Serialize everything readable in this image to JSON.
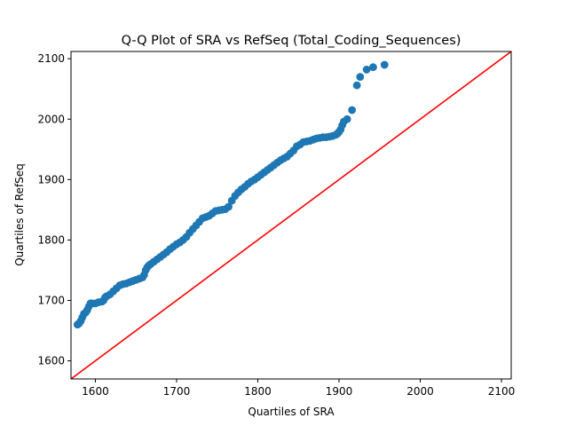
{
  "chart_data": {
    "type": "scatter",
    "title": "Q-Q Plot of SRA vs RefSeq (Total_Coding_Sequences)",
    "xlabel": "Quartiles of SRA",
    "ylabel": "Quartiles of RefSeq",
    "xlim": [
      1570,
      2112
    ],
    "ylim": [
      1570,
      2112
    ],
    "xticks": [
      1600,
      1700,
      1800,
      1900,
      2000,
      2100
    ],
    "yticks": [
      1600,
      1700,
      1800,
      1900,
      2000,
      2100
    ],
    "grid": false,
    "marker_color": "#1f77b4",
    "reference_line": {
      "from": [
        1570,
        1570
      ],
      "to": [
        2112,
        2112
      ],
      "color": "#ff0000"
    },
    "points": {
      "x": [
        1578,
        1580,
        1582,
        1584,
        1586,
        1588,
        1590,
        1592,
        1594,
        1596,
        1600,
        1604,
        1608,
        1610,
        1612,
        1614,
        1618,
        1622,
        1626,
        1630,
        1634,
        1638,
        1642,
        1646,
        1650,
        1654,
        1658,
        1660,
        1662,
        1664,
        1666,
        1668,
        1672,
        1676,
        1680,
        1684,
        1688,
        1692,
        1696,
        1700,
        1704,
        1708,
        1712,
        1716,
        1720,
        1724,
        1728,
        1732,
        1736,
        1740,
        1744,
        1748,
        1752,
        1756,
        1760,
        1764,
        1768,
        1772,
        1776,
        1780,
        1784,
        1788,
        1792,
        1796,
        1800,
        1804,
        1808,
        1812,
        1816,
        1820,
        1824,
        1828,
        1832,
        1836,
        1840,
        1844,
        1848,
        1852,
        1856,
        1860,
        1864,
        1868,
        1872,
        1876,
        1880,
        1884,
        1888,
        1892,
        1896,
        1898,
        1900,
        1902,
        1904,
        1906,
        1910,
        1916,
        1922,
        1926,
        1934,
        1942,
        1956
      ],
      "y": [
        1660,
        1662,
        1666,
        1672,
        1678,
        1680,
        1684,
        1690,
        1695,
        1695,
        1695,
        1697,
        1698,
        1700,
        1705,
        1707,
        1710,
        1715,
        1720,
        1725,
        1727,
        1728,
        1730,
        1732,
        1734,
        1736,
        1738,
        1742,
        1750,
        1755,
        1758,
        1760,
        1764,
        1768,
        1772,
        1776,
        1780,
        1785,
        1789,
        1793,
        1796,
        1800,
        1805,
        1812,
        1818,
        1824,
        1830,
        1836,
        1838,
        1840,
        1844,
        1848,
        1849,
        1850,
        1851,
        1855,
        1865,
        1873,
        1879,
        1884,
        1888,
        1893,
        1897,
        1900,
        1904,
        1908,
        1912,
        1916,
        1920,
        1924,
        1928,
        1932,
        1935,
        1938,
        1943,
        1948,
        1955,
        1958,
        1962,
        1963,
        1964,
        1966,
        1968,
        1969,
        1970,
        1970,
        1971,
        1972,
        1974,
        1976,
        1979,
        1983,
        1990,
        1996,
        2000,
        2015,
        2056,
        2070,
        2082,
        2086,
        2090
      ]
    }
  }
}
